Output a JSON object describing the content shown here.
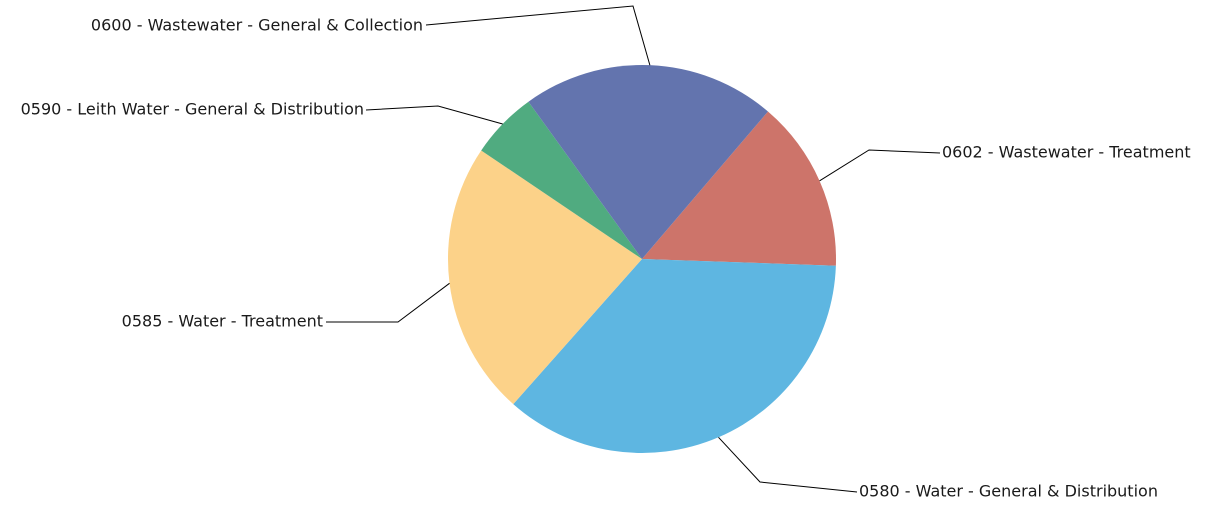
{
  "chart_data": {
    "type": "pie",
    "title": "",
    "slices": [
      {
        "label": "0602 - Wastewater - Treatment",
        "value": 14.3,
        "color": "#CD746A"
      },
      {
        "label": "0580 - Water - General & Distribution",
        "value": 36.0,
        "color": "#5EB6E1"
      },
      {
        "label": "0585 - Water - Treatment",
        "value": 22.9,
        "color": "#FCD289"
      },
      {
        "label": "0590 - Leith Water - General & Distribution",
        "value": 5.6,
        "color": "#50AB80"
      },
      {
        "label": "0600 - Wastewater - General & Collection",
        "value": 21.2,
        "color": "#6374AE"
      }
    ],
    "legend": "none",
    "labels": "outside-with-leader-lines"
  }
}
